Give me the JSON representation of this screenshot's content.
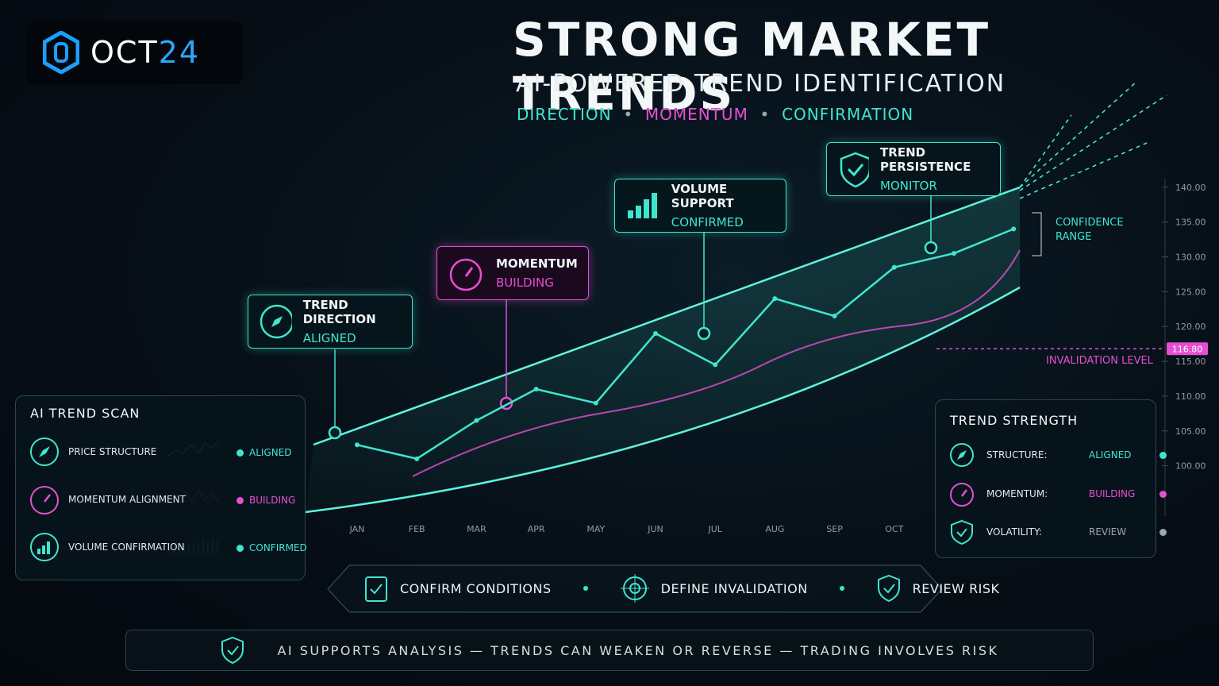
{
  "logo": {
    "name_a": "OCT",
    "name_b": "24"
  },
  "header": {
    "title": "STRONG MARKET TRENDS",
    "subtitle": "AI-POWERED TREND IDENTIFICATION",
    "tags": [
      "DIRECTION",
      "MOMENTUM",
      "CONFIRMATION"
    ]
  },
  "callouts": [
    {
      "title": "TREND DIRECTION",
      "status": "ALIGNED"
    },
    {
      "title": "MOMENTUM",
      "status": "BUILDING"
    },
    {
      "title": "VOLUME SUPPORT",
      "status": "CONFIRMED"
    },
    {
      "title": "TREND PERSISTENCE",
      "status": "MONITOR"
    }
  ],
  "chart_data": {
    "type": "line",
    "categories": [
      "JAN",
      "FEB",
      "MAR",
      "APR",
      "MAY",
      "JUN",
      "JUL",
      "AUG",
      "SEP",
      "OCT",
      null,
      null
    ],
    "values": [
      103,
      101,
      106.5,
      111,
      109,
      119,
      114.5,
      124,
      121.5,
      128.5,
      130.5,
      134
    ],
    "color": "#3fe6cf",
    "ylim": [
      93,
      141
    ],
    "yticks": [
      {
        "value": 100,
        "label": "100.00"
      },
      {
        "value": 105,
        "label": "105.00"
      },
      {
        "value": 110,
        "label": "110.00"
      },
      {
        "value": 115,
        "label": "115.00"
      },
      {
        "value": 120,
        "label": "120.00"
      },
      {
        "value": 125,
        "label": "125.00"
      },
      {
        "value": 130,
        "label": "130.00"
      },
      {
        "value": 135,
        "label": "135.00"
      },
      {
        "value": 140,
        "label": "140.00"
      }
    ],
    "invalidation": {
      "value": 116.8,
      "label": "116.80",
      "text": "INVALIDATION LEVEL"
    },
    "confidence_label": "CONFIDENCE RANGE"
  },
  "scan_panel": {
    "title": "AI TREND SCAN",
    "rows": [
      {
        "label": "PRICE STRUCTURE",
        "status": "ALIGNED"
      },
      {
        "label": "MOMENTUM ALIGNMENT",
        "status": "BUILDING"
      },
      {
        "label": "VOLUME CONFIRMATION",
        "status": "CONFIRMED"
      }
    ]
  },
  "strength_panel": {
    "title": "TREND STRENGTH",
    "rows": [
      {
        "label": "STRUCTURE:",
        "status": "ALIGNED"
      },
      {
        "label": "MOMENTUM:",
        "status": "BUILDING"
      },
      {
        "label": "VOLATILITY:",
        "status": "REVIEW"
      }
    ]
  },
  "actions": [
    "CONFIRM CONDITIONS",
    "DEFINE INVALIDATION",
    "REVIEW RISK"
  ],
  "disclaimer": "AI SUPPORTS ANALYSIS — TRENDS CAN WEAKEN OR REVERSE — TRADING INVOLVES RISK"
}
